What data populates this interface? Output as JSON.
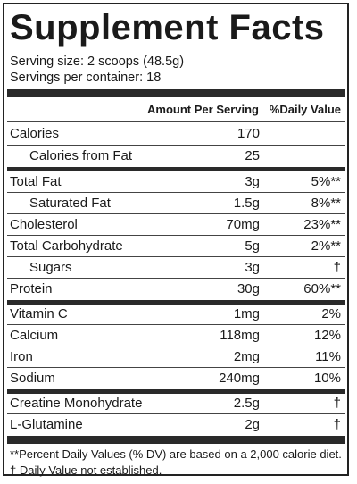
{
  "title": "Supplement Facts",
  "serving_size": "Serving size: 2 scoops (48.5g)",
  "servings_per_container": "Servings per container: 18",
  "headers": {
    "amount": "Amount Per Serving",
    "dv": "%Daily Value"
  },
  "rows": [
    {
      "name": "Calories",
      "amount": "170",
      "dv": ""
    },
    {
      "name": "Calories from Fat",
      "amount": "25",
      "dv": ""
    },
    {
      "name": "Total Fat",
      "amount": "3g",
      "dv": "5%**"
    },
    {
      "name": "Saturated Fat",
      "amount": "1.5g",
      "dv": "8%**"
    },
    {
      "name": "Cholesterol",
      "amount": "70mg",
      "dv": "23%**"
    },
    {
      "name": "Total Carbohydrate",
      "amount": "5g",
      "dv": "2%**"
    },
    {
      "name": "Sugars",
      "amount": "3g",
      "dv": "†"
    },
    {
      "name": "Protein",
      "amount": "30g",
      "dv": "60%**"
    },
    {
      "name": "Vitamin C",
      "amount": "1mg",
      "dv": "2%"
    },
    {
      "name": "Calcium",
      "amount": "118mg",
      "dv": "12%"
    },
    {
      "name": "Iron",
      "amount": "2mg",
      "dv": "11%"
    },
    {
      "name": "Sodium",
      "amount": "240mg",
      "dv": "10%"
    },
    {
      "name": "Creatine Monohydrate",
      "amount": "2.5g",
      "dv": "†"
    },
    {
      "name": "L-Glutamine",
      "amount": "2g",
      "dv": "†"
    }
  ],
  "footnotes": {
    "dv_note": "**Percent Daily Values (% DV) are based on a 2,000 calorie diet.",
    "dagger_note": "† Daily Value not established."
  }
}
